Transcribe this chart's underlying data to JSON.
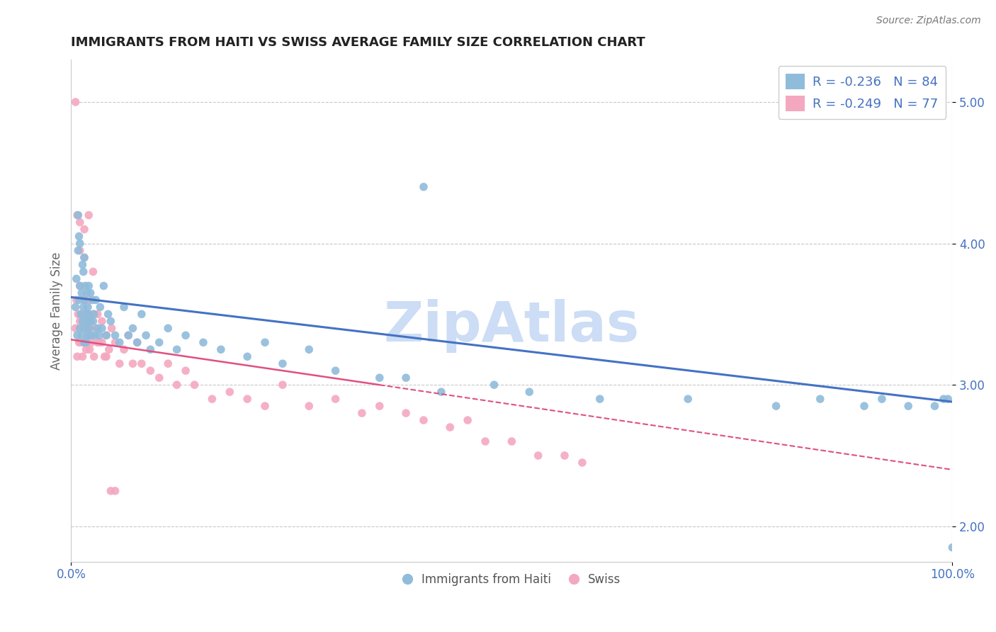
{
  "title": "IMMIGRANTS FROM HAITI VS SWISS AVERAGE FAMILY SIZE CORRELATION CHART",
  "source": "Source: ZipAtlas.com",
  "ylabel": "Average Family Size",
  "xlim": [
    0,
    1
  ],
  "ylim": [
    1.75,
    5.3
  ],
  "yticks": [
    2.0,
    3.0,
    4.0,
    5.0
  ],
  "xticklabels": [
    "0.0%",
    "100.0%"
  ],
  "legend_labels": [
    "Immigrants from Haiti",
    "Swiss"
  ],
  "haiti_R": -0.236,
  "haiti_N": 84,
  "swiss_R": -0.249,
  "swiss_N": 77,
  "haiti_color": "#8fbcdb",
  "swiss_color": "#f4a8bf",
  "haiti_trend_color": "#4472c4",
  "swiss_trend_color": "#e05080",
  "background_color": "#ffffff",
  "grid_color": "#c8c8c8",
  "title_color": "#222222",
  "axis_label_color": "#666666",
  "tick_color": "#4472c4",
  "watermark_color": "#ccddf5",
  "haiti_trend_x0": 0.0,
  "haiti_trend_y0": 3.62,
  "haiti_trend_x1": 1.0,
  "haiti_trend_y1": 2.88,
  "swiss_trend_solid_x0": 0.0,
  "swiss_trend_solid_y0": 3.32,
  "swiss_trend_solid_x1": 0.35,
  "swiss_trend_solid_y1": 3.0,
  "swiss_trend_dash_x0": 0.35,
  "swiss_trend_dash_y0": 3.0,
  "swiss_trend_dash_x1": 1.0,
  "swiss_trend_dash_y1": 2.4,
  "haiti_points_x": [
    0.005,
    0.006,
    0.007,
    0.008,
    0.008,
    0.009,
    0.009,
    0.01,
    0.01,
    0.01,
    0.011,
    0.012,
    0.012,
    0.013,
    0.013,
    0.014,
    0.014,
    0.015,
    0.015,
    0.015,
    0.016,
    0.016,
    0.017,
    0.017,
    0.018,
    0.018,
    0.019,
    0.019,
    0.02,
    0.02,
    0.021,
    0.022,
    0.022,
    0.023,
    0.024,
    0.025,
    0.026,
    0.027,
    0.028,
    0.03,
    0.032,
    0.033,
    0.035,
    0.037,
    0.04,
    0.042,
    0.045,
    0.05,
    0.055,
    0.06,
    0.065,
    0.07,
    0.075,
    0.08,
    0.085,
    0.09,
    0.1,
    0.11,
    0.12,
    0.13,
    0.15,
    0.17,
    0.2,
    0.22,
    0.24,
    0.27,
    0.3,
    0.35,
    0.38,
    0.42,
    0.48,
    0.52,
    0.6,
    0.7,
    0.8,
    0.85,
    0.9,
    0.92,
    0.95,
    0.98,
    0.99,
    0.995,
    1.0,
    0.4
  ],
  "haiti_points_y": [
    3.55,
    3.75,
    3.35,
    3.95,
    4.2,
    3.6,
    4.05,
    3.4,
    3.7,
    4.0,
    3.5,
    3.35,
    3.65,
    3.85,
    3.45,
    3.55,
    3.8,
    3.3,
    3.6,
    3.9,
    3.4,
    3.7,
    3.5,
    3.3,
    3.65,
    3.45,
    3.35,
    3.55,
    3.5,
    3.7,
    3.4,
    3.45,
    3.65,
    3.35,
    3.6,
    3.45,
    3.5,
    3.35,
    3.6,
    3.4,
    3.35,
    3.55,
    3.4,
    3.7,
    3.35,
    3.5,
    3.45,
    3.35,
    3.3,
    3.55,
    3.35,
    3.4,
    3.3,
    3.5,
    3.35,
    3.25,
    3.3,
    3.4,
    3.25,
    3.35,
    3.3,
    3.25,
    3.2,
    3.3,
    3.15,
    3.25,
    3.1,
    3.05,
    3.05,
    2.95,
    3.0,
    2.95,
    2.9,
    2.9,
    2.85,
    2.9,
    2.85,
    2.9,
    2.85,
    2.85,
    2.9,
    2.9,
    1.85,
    4.4
  ],
  "swiss_points_x": [
    0.005,
    0.006,
    0.007,
    0.008,
    0.009,
    0.01,
    0.01,
    0.011,
    0.012,
    0.013,
    0.014,
    0.015,
    0.015,
    0.016,
    0.017,
    0.018,
    0.019,
    0.02,
    0.02,
    0.021,
    0.022,
    0.023,
    0.025,
    0.026,
    0.028,
    0.03,
    0.032,
    0.035,
    0.038,
    0.04,
    0.043,
    0.046,
    0.05,
    0.055,
    0.06,
    0.065,
    0.07,
    0.075,
    0.08,
    0.09,
    0.1,
    0.11,
    0.12,
    0.13,
    0.14,
    0.16,
    0.18,
    0.2,
    0.22,
    0.24,
    0.27,
    0.3,
    0.33,
    0.35,
    0.38,
    0.4,
    0.43,
    0.45,
    0.47,
    0.5,
    0.53,
    0.56,
    0.58,
    0.005,
    0.007,
    0.01,
    0.01,
    0.015,
    0.015,
    0.02,
    0.02,
    0.025,
    0.03,
    0.035,
    0.04,
    0.045,
    0.05
  ],
  "swiss_points_y": [
    3.4,
    3.6,
    3.2,
    3.5,
    3.3,
    3.45,
    3.7,
    3.3,
    3.5,
    3.2,
    3.4,
    3.6,
    3.3,
    3.45,
    3.25,
    3.5,
    3.35,
    3.4,
    3.6,
    3.25,
    3.45,
    3.3,
    3.5,
    3.2,
    3.4,
    3.5,
    3.3,
    3.45,
    3.2,
    3.35,
    3.25,
    3.4,
    3.3,
    3.15,
    3.25,
    3.35,
    3.15,
    3.3,
    3.15,
    3.1,
    3.05,
    3.15,
    3.0,
    3.1,
    3.0,
    2.9,
    2.95,
    2.9,
    2.85,
    3.0,
    2.85,
    2.9,
    2.8,
    2.85,
    2.8,
    2.75,
    2.7,
    2.75,
    2.6,
    2.6,
    2.5,
    2.5,
    2.45,
    5.0,
    4.2,
    4.15,
    3.95,
    3.9,
    4.1,
    3.5,
    4.2,
    3.8,
    3.3,
    3.3,
    3.2,
    2.25,
    2.25
  ]
}
